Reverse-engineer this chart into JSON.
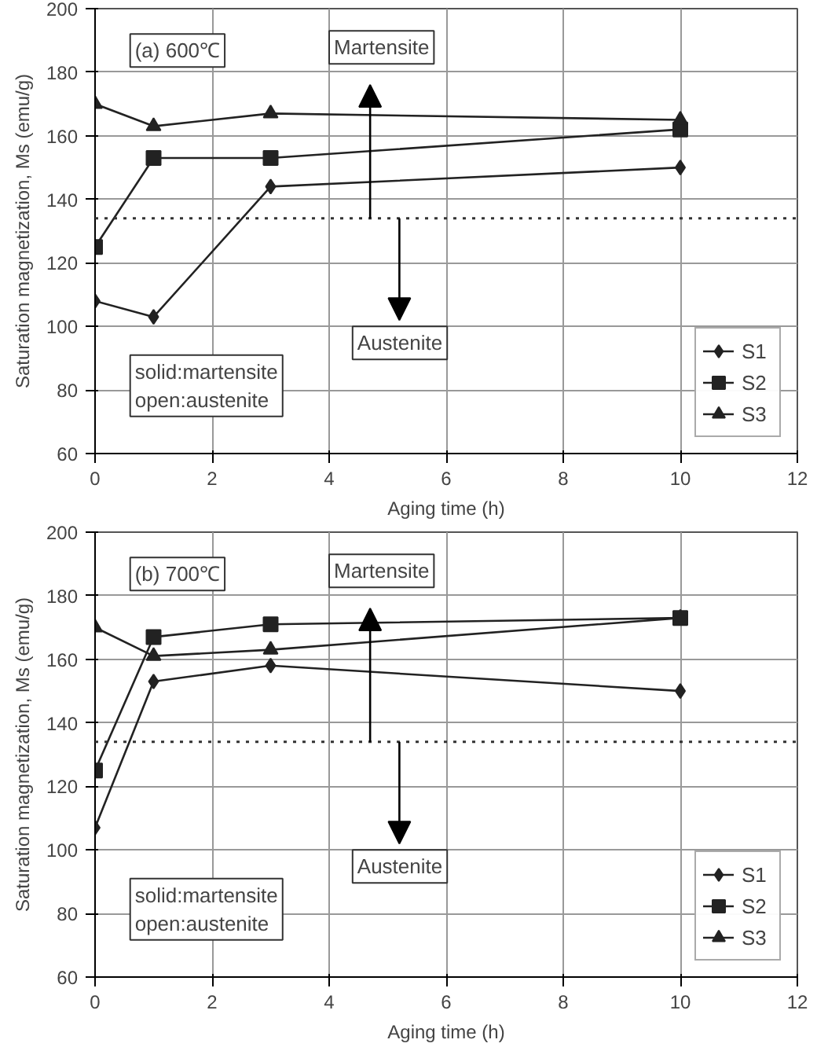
{
  "chart_data": [
    {
      "type": "line",
      "xlabel": "Aging time (h)",
      "ylabel": "Saturation magnetization, Ms (emu/g)",
      "x": [
        0,
        1,
        3,
        10
      ],
      "xlim": [
        0,
        12
      ],
      "xticks": [
        0,
        2,
        4,
        6,
        8,
        10,
        12
      ],
      "ylim": [
        60,
        200
      ],
      "yticks": [
        60,
        80,
        100,
        120,
        140,
        160,
        180,
        200
      ],
      "grid": true,
      "legend": "bottom right",
      "series": [
        {
          "name": "S1",
          "color": "#222222",
          "marker": "diamond",
          "values": [
            108,
            103,
            144,
            150
          ]
        },
        {
          "name": "S2",
          "color": "#222222",
          "marker": "square",
          "values": [
            125,
            153,
            153,
            162
          ]
        },
        {
          "name": "S3",
          "color": "#222222",
          "marker": "triangle",
          "values": [
            170,
            163,
            167,
            165
          ]
        }
      ],
      "ref_lines": [
        {
          "axis": "y",
          "value": 134,
          "line_style": "dotted",
          "color": "#333333"
        }
      ],
      "annotations": [
        "(a) 600℃",
        "Martensite",
        "Austenite",
        "solid:martensite\nopen:austenite"
      ]
    },
    {
      "type": "line",
      "xlabel": "Aging time (h)",
      "ylabel": "Saturation magnetization, Ms (emu/g)",
      "x": [
        0,
        1,
        3,
        10
      ],
      "xlim": [
        0,
        12
      ],
      "xticks": [
        0,
        2,
        4,
        6,
        8,
        10,
        12
      ],
      "ylim": [
        60,
        200
      ],
      "yticks": [
        60,
        80,
        100,
        120,
        140,
        160,
        180,
        200
      ],
      "grid": true,
      "legend": "bottom right",
      "series": [
        {
          "name": "S1",
          "color": "#222222",
          "marker": "diamond",
          "values": [
            107,
            153,
            158,
            150
          ]
        },
        {
          "name": "S2",
          "color": "#222222",
          "marker": "square",
          "values": [
            125,
            167,
            171,
            173
          ]
        },
        {
          "name": "S3",
          "color": "#222222",
          "marker": "triangle",
          "values": [
            170,
            161,
            163,
            173
          ]
        }
      ],
      "ref_lines": [
        {
          "axis": "y",
          "value": 134,
          "line_style": "dotted",
          "color": "#333333"
        }
      ],
      "annotations": [
        "(b) 700℃",
        "Martensite",
        "Austenite",
        "solid:martensite\nopen:austenite"
      ]
    }
  ]
}
